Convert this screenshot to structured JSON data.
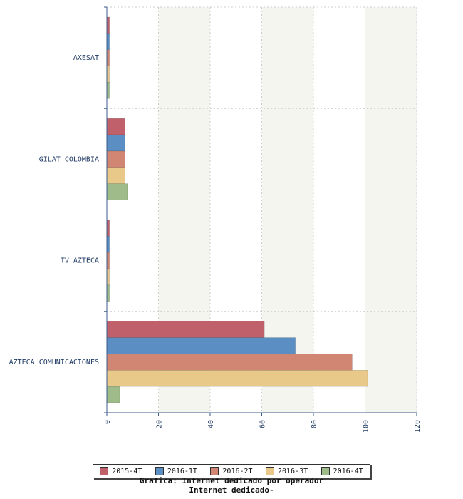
{
  "chart_data": {
    "type": "bar",
    "orientation": "horizontal",
    "categories": [
      "AXESAT",
      "GILAT COLOMBIA",
      "TV AZTECA",
      "AZTECA COMUNICACIONES"
    ],
    "series": [
      {
        "name": "2015-4T",
        "color": "#c0606b",
        "values": [
          1,
          7,
          1,
          61
        ]
      },
      {
        "name": "2016-1T",
        "color": "#5b8fc3",
        "values": [
          1,
          7,
          1,
          73
        ]
      },
      {
        "name": "2016-2T",
        "color": "#d08672",
        "values": [
          1,
          7,
          1,
          95
        ]
      },
      {
        "name": "2016-3T",
        "color": "#e8c98a",
        "values": [
          1,
          7,
          1,
          101
        ]
      },
      {
        "name": "2016-4T",
        "color": "#a0bb8a",
        "values": [
          1,
          8,
          1,
          5
        ]
      }
    ],
    "xlim": [
      0,
      120
    ],
    "xticks": [
      0,
      20,
      40,
      60,
      80,
      100,
      120
    ],
    "grid": true,
    "legend_position": "bottom",
    "caption_lines": [
      "Grafica: Internet dedicado por operador",
      "Internet dedicado-"
    ]
  }
}
